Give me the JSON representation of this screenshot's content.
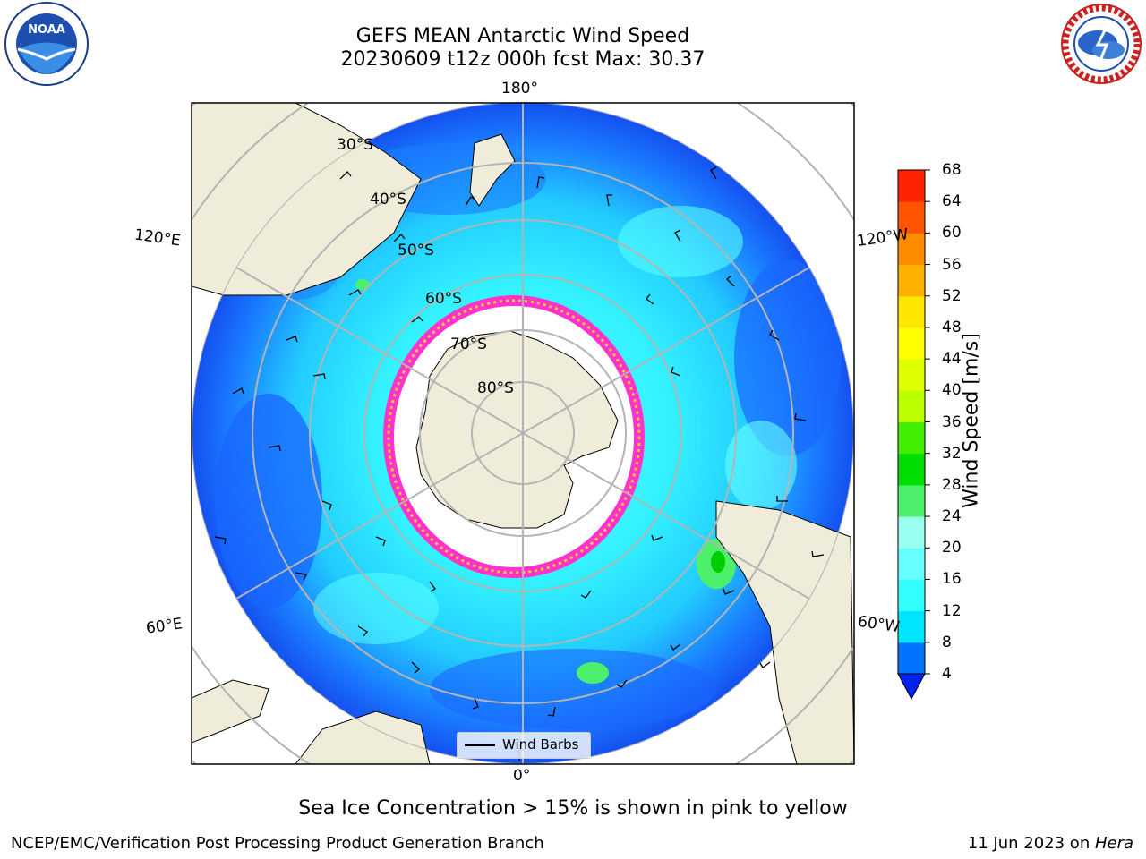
{
  "header": {
    "title_line1": "GEFS MEAN Antarctic Wind Speed",
    "title_line2": "20230609 t12z 000h fcst   Max: 30.37"
  },
  "logos": {
    "left": {
      "name": "NOAA",
      "ring_text": "NATIONAL OCEANIC AND ATMOSPHERIC ADMINISTRATION",
      "ring_text_bottom": "U.S. DEPARTMENT OF COMMERCE"
    },
    "right": {
      "name": "NATIONAL WEATHER SERVICE"
    }
  },
  "map": {
    "projection": "south-polar-stereographic",
    "longitude_labels": {
      "top": "180°",
      "bottom": "0°",
      "upper_left": "120°E",
      "upper_right": "120°W",
      "lower_left": "60°E",
      "lower_right": "60°W"
    },
    "latitude_labels": [
      "30°S",
      "40°S",
      "50°S",
      "60°S",
      "70°S",
      "80°S"
    ],
    "legend_label": "Wind Barbs",
    "colors": {
      "ocean_low": "#0044ff",
      "land": "#efedda",
      "ice": "#ff33cc"
    }
  },
  "colorbar": {
    "label": "Wind Speed [m/s]",
    "ticks": [
      "4",
      "8",
      "12",
      "16",
      "20",
      "24",
      "28",
      "32",
      "36",
      "40",
      "44",
      "48",
      "52",
      "56",
      "60",
      "64",
      "68"
    ],
    "colors": [
      "#0074ff",
      "#00e5ff",
      "#33ffff",
      "#66ffff",
      "#99ffee",
      "#4cf06a",
      "#00dd00",
      "#44ee00",
      "#bbff00",
      "#ddff00",
      "#ffff00",
      "#ffe600",
      "#ffb000",
      "#ff8c00",
      "#ff5500",
      "#ff2200",
      "#ff0000"
    ],
    "under_color": "#0022ee"
  },
  "footer": {
    "note": "Sea Ice Concentration > 15% is shown in pink to yellow",
    "left": "NCEP/EMC/Verification Post Processing Product Generation Branch",
    "right_date": "11 Jun 2023 on ",
    "right_host": "Hera"
  }
}
